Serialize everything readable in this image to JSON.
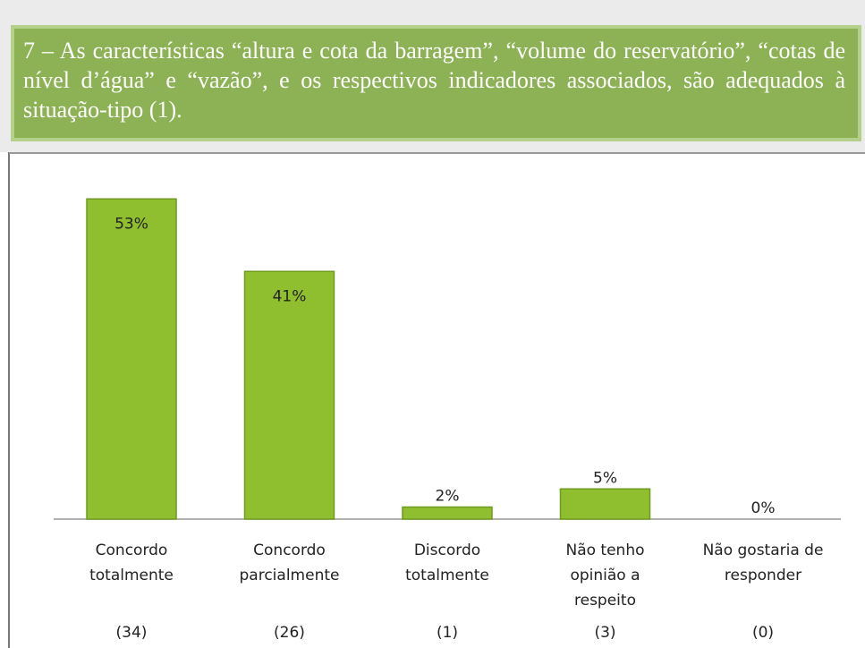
{
  "header": {
    "text": "7 – As características “altura e cota da barragem”, “volume do reservatório”, “cotas de nível d’água” e “vazão”, e os respectivos indicadores associados, são adequados à situação-tipo (1)."
  },
  "chart_data": {
    "type": "bar",
    "categories": [
      [
        "Concordo",
        "totalmente"
      ],
      [
        "Concordo",
        "parcialmente"
      ],
      [
        "Discordo",
        "totalmente"
      ],
      [
        "Não tenho",
        "opinião a",
        "respeito"
      ],
      [
        "Não gostaria de",
        "responder"
      ]
    ],
    "values": [
      53,
      41,
      2,
      5,
      0
    ],
    "value_labels": [
      "53%",
      "41%",
      "2%",
      "5%",
      "0%"
    ],
    "counts": [
      {
        "value": 34,
        "label": "(34)"
      },
      {
        "value": 26,
        "label": "(26)"
      },
      {
        "value": 1,
        "label": "(1)"
      },
      {
        "value": 3,
        "label": "(3)"
      },
      {
        "value": 0,
        "label": "(0)"
      }
    ],
    "color": "#8fbf2f"
  }
}
